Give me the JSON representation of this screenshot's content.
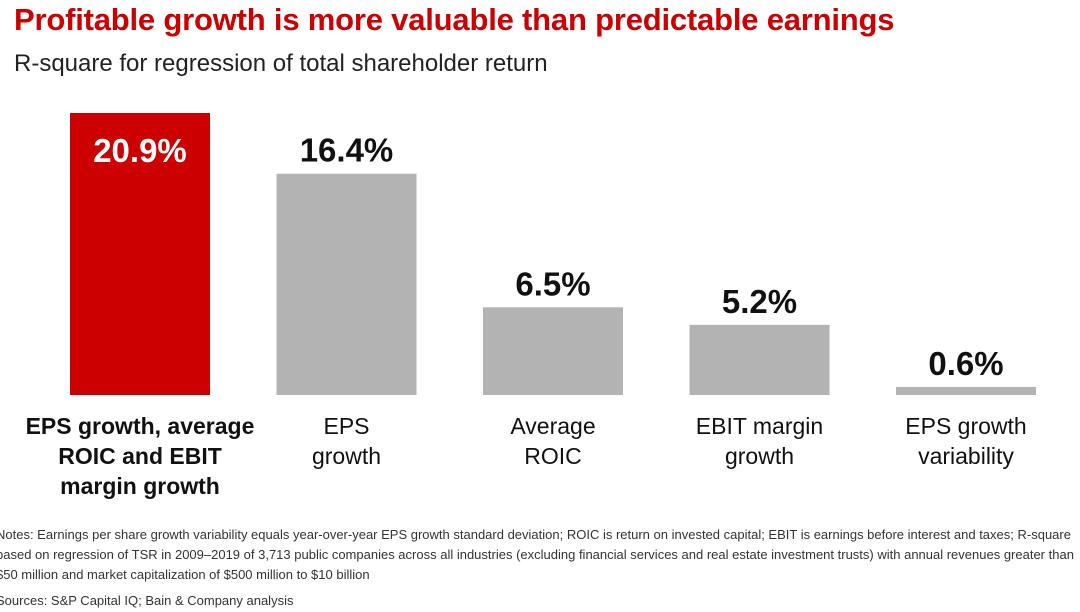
{
  "title": "Profitable growth is more valuable than predictable earnings",
  "subtitle": "R-square for regression of total shareholder return",
  "chart_data": {
    "type": "bar",
    "categories": [
      [
        "EPS growth, average",
        "ROIC and EBIT",
        "margin growth"
      ],
      [
        "EPS",
        "growth"
      ],
      [
        "Average",
        "ROIC"
      ],
      [
        "EBIT margin",
        "growth"
      ],
      [
        "EPS growth",
        "variability"
      ]
    ],
    "values": [
      20.9,
      16.4,
      6.5,
      5.2,
      0.6
    ],
    "labels": [
      "20.9%",
      "16.4%",
      "6.5%",
      "5.2%",
      "0.6%"
    ],
    "highlight_index": 0,
    "colors": {
      "highlight": "#cc0000",
      "default": "#b3b3b3"
    },
    "ylim": [
      0,
      20.9
    ],
    "grid": false
  },
  "notes": "Notes: Earnings per share growth variability equals year-over-year EPS growth standard deviation; ROIC is return on invested capital; EBIT is earnings before interest and taxes; R-square based on regression of TSR in 2009–2019 of 3,713 public companies across all industries (excluding financial services and real estate investment trusts) with annual revenues greater than $50 million and market capitalization of $500 million to $10 billion",
  "sources": "Sources: S&P Capital IQ; Bain & Company analysis"
}
